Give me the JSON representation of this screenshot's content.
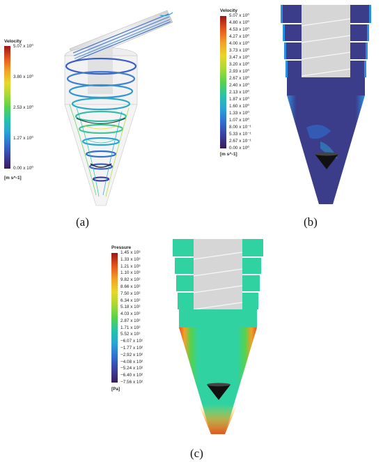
{
  "panels": {
    "a": {
      "caption": "(a)",
      "legend": {
        "title": "Velocity",
        "unit": "[m s^-1]",
        "labels": [
          "5.07 x 10⁰",
          "3.80 x 10⁰",
          "2.53 x 10⁰",
          "1.27 x 10⁰",
          "0.00 x 10⁰"
        ]
      }
    },
    "b": {
      "caption": "(b)",
      "legend": {
        "title": "Velocity",
        "unit": "[m s^-1]",
        "labels": [
          "5.07 x 10⁰",
          "4.80 x 10⁰",
          "4.53 x 10⁰",
          "4.27 x 10⁰",
          "4.00 x 10⁰",
          "3.73 x 10⁰",
          "3.47 x 10⁰",
          "3.20 x 10⁰",
          "2.93 x 10⁰",
          "2.67 x 10⁰",
          "2.40 x 10⁰",
          "2.13 x 10⁰",
          "1.87 x 10⁰",
          "1.60 x 10⁰",
          "1.33 x 10⁰",
          "1.07 x 10⁰",
          "8.00 x 10⁻¹",
          "5.33 x 10⁻¹",
          "2.67 x 10⁻¹",
          "0.00 x 10⁰"
        ]
      }
    },
    "c": {
      "caption": "(c)",
      "legend": {
        "title": "Pressure",
        "unit": "[Pa]",
        "labels": [
          "1.45 x 10³",
          "1.33 x 10³",
          "1.21 x 10³",
          "1.10 x 10³",
          "9.82 x 10²",
          "8.66 x 10²",
          "7.50 x 10²",
          "6.34 x 10²",
          "5.18 x 10²",
          "4.03 x 10²",
          "2.87 x 10²",
          "1.71 x 10²",
          "5.52 x 10¹",
          "−6.07 x 10¹",
          "−1.77 x 10²",
          "−2.92 x 10²",
          "−4.08 x 10²",
          "−5.24 x 10²",
          "−6.40 x 10²",
          "−7.56 x 10²"
        ]
      }
    }
  },
  "colors": {
    "rainbow": [
      "#3a1c5a",
      "#3c3fa0",
      "#2f6fd0",
      "#2aa3d6",
      "#26c3a8",
      "#56d24e",
      "#a8d836",
      "#e9d62c",
      "#f2a028",
      "#e5551d",
      "#9c1616"
    ],
    "geometry_gray": "#cfcfcf",
    "body_navy": "#3b3c8a",
    "body_teal": "#2fd2a0"
  }
}
